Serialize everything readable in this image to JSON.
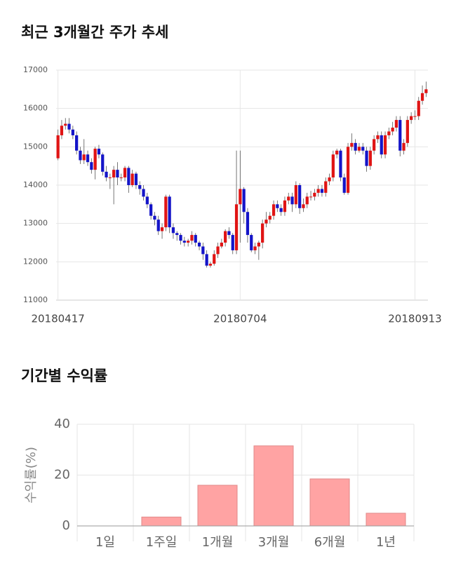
{
  "chart_data": [
    {
      "type": "candlestick",
      "title": "최근 3개월간 주가 추세",
      "categories": [
        "20180417",
        null,
        null,
        null,
        null,
        null,
        null,
        null,
        null,
        null,
        null,
        null,
        null,
        null,
        null,
        null,
        null,
        null,
        null,
        null,
        null,
        null,
        null,
        null,
        null,
        null,
        null,
        null,
        null,
        null,
        null,
        null,
        null,
        null,
        null,
        null,
        null,
        null,
        null,
        null,
        null,
        null,
        null,
        null,
        null,
        null,
        null,
        null,
        null,
        "20180704",
        null,
        null,
        null,
        null,
        null,
        null,
        null,
        null,
        null,
        null,
        null,
        null,
        null,
        null,
        null,
        null,
        null,
        null,
        null,
        null,
        null,
        null,
        null,
        null,
        null,
        null,
        null,
        null,
        null,
        null,
        null,
        null,
        null,
        null,
        null,
        null,
        null,
        null,
        null,
        null,
        null,
        null,
        null,
        null,
        null,
        null,
        "20180913",
        null,
        null,
        null
      ],
      "open": [
        14700,
        15300,
        15550,
        15600,
        15450,
        15300,
        14900,
        14650,
        14800,
        14600,
        14400,
        14950,
        14800,
        14350,
        14200,
        14200,
        14400,
        14200,
        14200,
        14450,
        14000,
        14300,
        14000,
        13900,
        13700,
        13500,
        13200,
        13100,
        12800,
        12900,
        13700,
        12900,
        12750,
        12700,
        12550,
        12500,
        12550,
        12700,
        12500,
        12400,
        12200,
        11900,
        11950,
        12200,
        12400,
        12500,
        12800,
        12700,
        12300,
        13500,
        13900,
        13300,
        12700,
        12300,
        12400,
        12500,
        13000,
        13100,
        13200,
        13500,
        13400,
        13300,
        13600,
        13700,
        13500,
        14000,
        13400,
        13500,
        13700,
        13700,
        13800,
        13900,
        13800,
        14100,
        14200,
        14800,
        14900,
        14200,
        13800,
        15000,
        15100,
        14900,
        15000,
        14900,
        14500,
        14900,
        15200,
        15300,
        14800,
        15300,
        15400,
        15500,
        15700,
        14900,
        15100,
        15700,
        15800,
        15800,
        16200,
        16400
      ],
      "high": [
        15450,
        15700,
        15750,
        15750,
        15550,
        15400,
        15000,
        15200,
        14900,
        14700,
        15000,
        15050,
        14850,
        14500,
        14300,
        14500,
        14600,
        14300,
        14500,
        14500,
        14400,
        14350,
        14100,
        14000,
        13800,
        13550,
        13300,
        13200,
        13000,
        13750,
        13750,
        13000,
        12800,
        12750,
        12650,
        12600,
        12800,
        12750,
        12550,
        12500,
        12300,
        12000,
        12300,
        12500,
        12600,
        12850,
        12900,
        12750,
        14900,
        14900,
        13950,
        13400,
        12750,
        12500,
        12550,
        13100,
        13300,
        13300,
        13600,
        13600,
        13500,
        13700,
        13800,
        13800,
        14100,
        14050,
        13650,
        13800,
        13850,
        13900,
        14000,
        14000,
        14200,
        14300,
        14900,
        14950,
        14950,
        14300,
        15100,
        15350,
        15200,
        15100,
        15100,
        15000,
        15000,
        15300,
        15400,
        15400,
        15400,
        15500,
        15650,
        15800,
        15800,
        15200,
        15800,
        15900,
        15950,
        16300,
        16600,
        16700
      ],
      "low": [
        14650,
        15200,
        15450,
        15350,
        15200,
        14800,
        14550,
        14550,
        14500,
        14300,
        14150,
        14700,
        14250,
        14100,
        13900,
        13500,
        14000,
        14100,
        14100,
        13800,
        13950,
        13900,
        13750,
        13600,
        13400,
        13100,
        12950,
        12700,
        12600,
        12800,
        12750,
        12600,
        12550,
        12450,
        12400,
        12400,
        12450,
        12400,
        12300,
        12050,
        11850,
        11850,
        11900,
        12100,
        12350,
        12400,
        12600,
        12200,
        12200,
        12500,
        13000,
        12500,
        12250,
        12200,
        12050,
        12350,
        12900,
        13000,
        13100,
        13300,
        13200,
        13200,
        13500,
        13300,
        13400,
        13250,
        13300,
        13400,
        13600,
        13600,
        13700,
        13700,
        13700,
        14000,
        14100,
        14700,
        14100,
        13750,
        13750,
        14900,
        14800,
        14850,
        14800,
        14350,
        14400,
        14800,
        15100,
        14700,
        14700,
        15200,
        15300,
        15400,
        14750,
        14800,
        15000,
        15600,
        15700,
        15700,
        16100,
        16300
      ],
      "close": [
        15300,
        15550,
        15600,
        15450,
        15300,
        14900,
        14650,
        14800,
        14600,
        14400,
        14950,
        14800,
        14350,
        14200,
        14200,
        14400,
        14200,
        14200,
        14450,
        14000,
        14300,
        14000,
        13900,
        13700,
        13500,
        13200,
        13100,
        12800,
        12900,
        13700,
        12900,
        12750,
        12700,
        12550,
        12500,
        12550,
        12700,
        12500,
        12400,
        12200,
        11900,
        11950,
        12200,
        12400,
        12500,
        12800,
        12700,
        12300,
        13500,
        13900,
        13300,
        12700,
        12300,
        12400,
        12500,
        13000,
        13100,
        13200,
        13500,
        13400,
        13300,
        13600,
        13700,
        13500,
        14000,
        13400,
        13500,
        13700,
        13700,
        13800,
        13900,
        13800,
        14100,
        14200,
        14800,
        14900,
        14200,
        13800,
        15000,
        15100,
        14900,
        15000,
        14900,
        14500,
        14900,
        15200,
        15300,
        14800,
        15300,
        15400,
        15500,
        15700,
        14900,
        15100,
        15700,
        15800,
        15800,
        16200,
        16400,
        16500
      ],
      "ylim": [
        11000,
        17000
      ],
      "yticks": [
        11000,
        12000,
        13000,
        14000,
        15000,
        16000,
        17000
      ],
      "up_color": "#e01414",
      "down_color": "#1414c8",
      "grid": true
    },
    {
      "type": "bar",
      "title": "기간별 수익률",
      "y_label": "수익률(%)",
      "categories": [
        "1일",
        "1주일",
        "1개월",
        "3개월",
        "6개월",
        "1년"
      ],
      "values": [
        0,
        3.5,
        16,
        31.5,
        18.5,
        5
      ],
      "color": "#ffa3a3",
      "ylim": [
        0,
        40
      ],
      "yticks": [
        0,
        20,
        40
      ],
      "grid": true
    }
  ]
}
